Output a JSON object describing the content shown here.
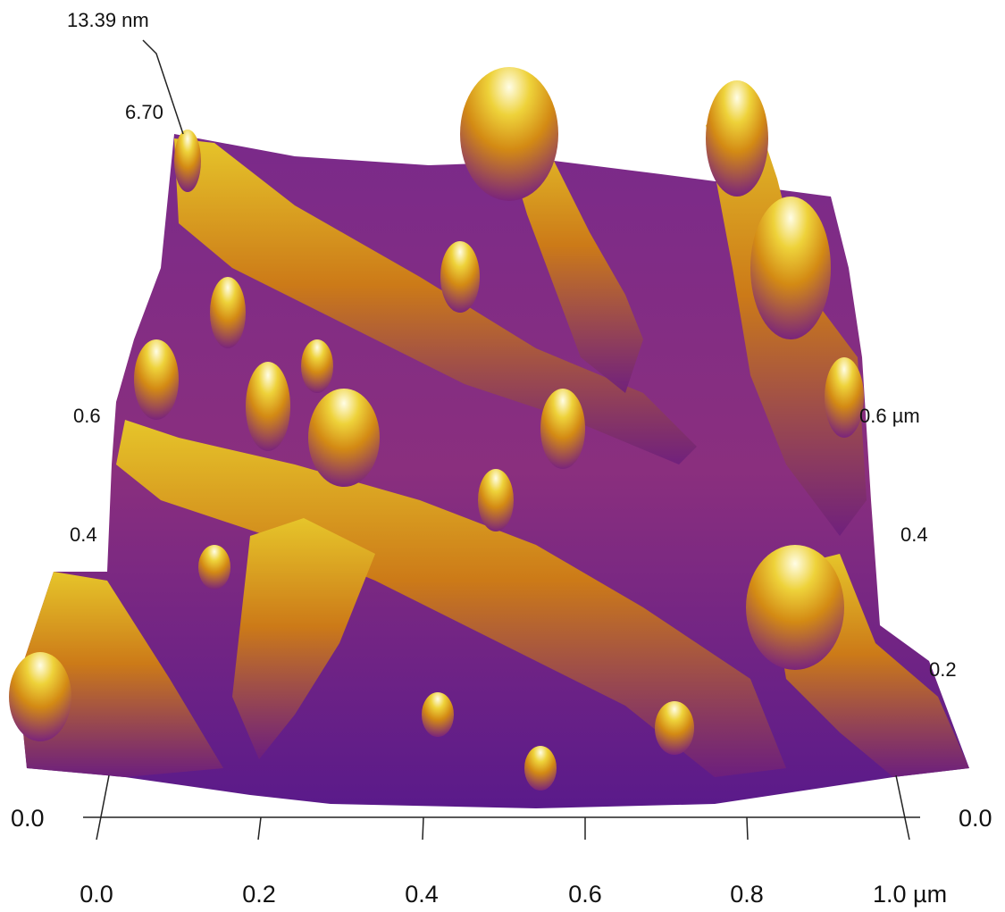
{
  "z_axis": {
    "max_label": "13.39 nm",
    "mid_label": "6.70"
  },
  "x_axis": {
    "labels": [
      "0.0",
      "0.2",
      "0.4",
      "0.6",
      "0.8",
      "1.0 µm"
    ]
  },
  "y_axis_left": {
    "labels": [
      "0.0",
      "0.4",
      "0.6"
    ]
  },
  "y_axis_right": {
    "labels": [
      "0.0",
      "0.2",
      "0.4",
      "0.6 µm"
    ]
  }
}
